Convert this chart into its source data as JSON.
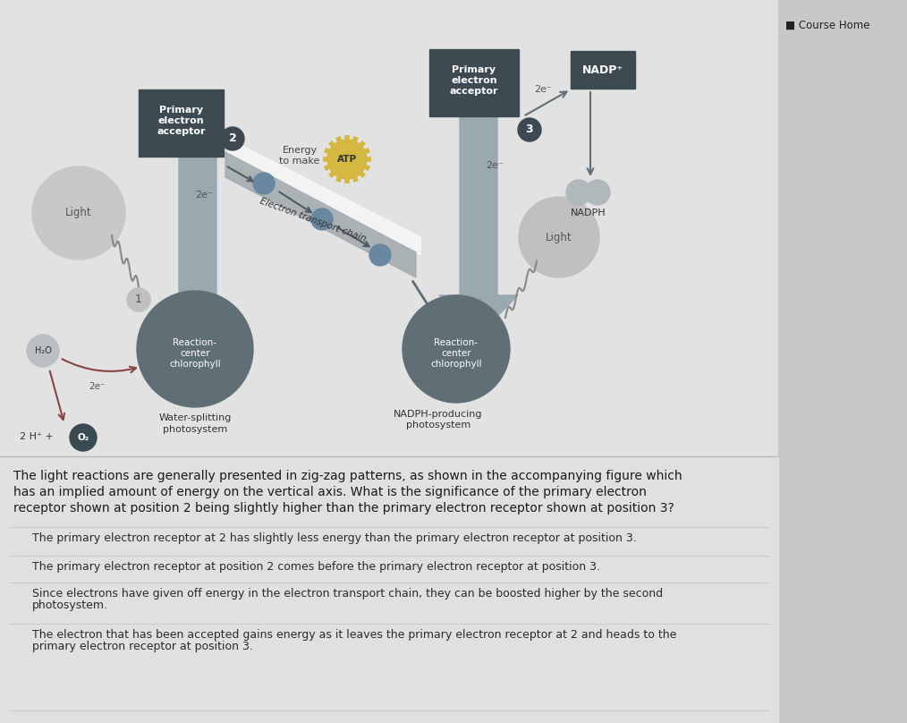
{
  "bg_color": "#d0d0d0",
  "diagram_bg": "#e8e8e8",
  "dark_box_color": "#3d4a52",
  "dark_circle_color": "#606e76",
  "light_circle_color": "#b8c0c4",
  "arrow_gray": "#7a8a92",
  "electron_blue": "#7090a0",
  "band_color": "#a8b4ba",
  "atp_yellow": "#d4b840",
  "nadph_bg": "#e8e8e8",
  "question_text_lines": [
    "The light reactions are generally presented in zig-zag patterns, as shown in the accompanying figure which",
    "has an implied amount of energy on the vertical axis. What is the significance of the primary electron",
    "receptor shown at position 2 being slightly higher than the primary electron receptor shown at position 3?"
  ],
  "options": [
    "The primary electron receptor at 2 has slightly less energy than the primary electron receptor at position 3.",
    "The primary electron receptor at position 2 comes before the primary electron receptor at position 3.",
    [
      "Since electrons have given off energy in the electron transport chain, they can be boosted higher by the second",
      "photosystem."
    ],
    [
      "The electron that has been accepted gains energy as it leaves the primary electron receptor at 2 and heads to the",
      "primary electron receptor at position 3."
    ]
  ]
}
